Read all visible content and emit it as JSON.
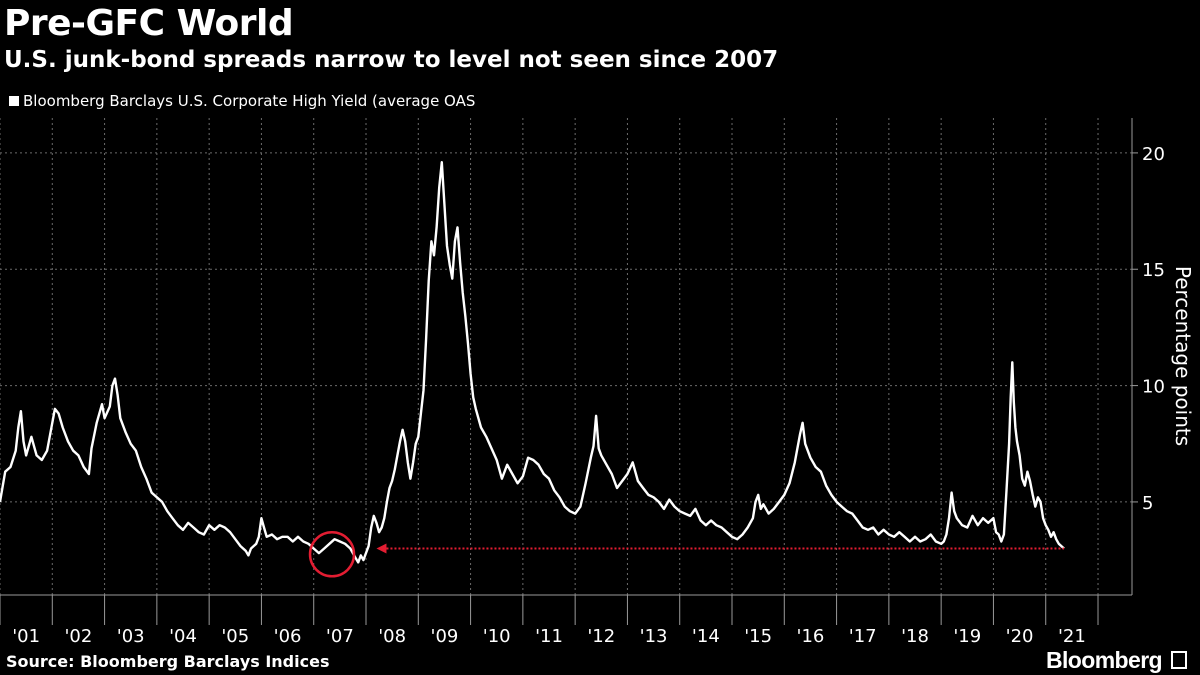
{
  "header": {
    "title": "Pre-GFC World",
    "subtitle": "U.S. junk-bond spreads narrow to level not seen since 2007"
  },
  "footer": {
    "source": "Source: Bloomberg Barclays Indices",
    "brand": "Bloomberg"
  },
  "colors": {
    "background": "#000000",
    "series": "#ffffff",
    "highlight": "#e31d32",
    "grid": "#6b6b6b"
  },
  "chart_data": {
    "type": "line",
    "title": "Pre-GFC World",
    "subtitle": "U.S. junk-bond spreads narrow to level not seen since 2007",
    "ylabel": "Percentage points",
    "ylim": [
      1,
      21.5
    ],
    "yticks": [
      5,
      10,
      15,
      20
    ],
    "xlim": [
      2000.0,
      2021.65
    ],
    "grid": true,
    "legend_position": "top-left",
    "x_tick_labels": [
      "'01",
      "'02",
      "'03",
      "'04",
      "'05",
      "'06",
      "'07",
      "'08",
      "'09",
      "'10",
      "'11",
      "'12",
      "'13",
      "'14",
      "'15",
      "'16",
      "'17",
      "'18",
      "'19",
      "'20",
      "'21"
    ],
    "series": [
      {
        "name": "Bloomberg Barclays U.S. Corporate High Yield (average OAS",
        "color": "#ffffff",
        "points": [
          [
            2000.0,
            5.0
          ],
          [
            2000.1,
            6.3
          ],
          [
            2000.2,
            6.5
          ],
          [
            2000.3,
            7.2
          ],
          [
            2000.35,
            8.2
          ],
          [
            2000.4,
            8.9
          ],
          [
            2000.45,
            7.6
          ],
          [
            2000.5,
            7.0
          ],
          [
            2000.6,
            7.8
          ],
          [
            2000.7,
            7.0
          ],
          [
            2000.8,
            6.8
          ],
          [
            2000.9,
            7.2
          ],
          [
            2001.0,
            8.4
          ],
          [
            2001.05,
            9.0
          ],
          [
            2001.12,
            8.8
          ],
          [
            2001.2,
            8.2
          ],
          [
            2001.3,
            7.6
          ],
          [
            2001.4,
            7.2
          ],
          [
            2001.5,
            7.0
          ],
          [
            2001.6,
            6.5
          ],
          [
            2001.7,
            6.2
          ],
          [
            2001.75,
            7.3
          ],
          [
            2001.85,
            8.4
          ],
          [
            2001.95,
            9.2
          ],
          [
            2002.0,
            8.6
          ],
          [
            2002.1,
            9.1
          ],
          [
            2002.15,
            10.0
          ],
          [
            2002.2,
            10.3
          ],
          [
            2002.25,
            9.6
          ],
          [
            2002.3,
            8.6
          ],
          [
            2002.4,
            8.0
          ],
          [
            2002.5,
            7.5
          ],
          [
            2002.6,
            7.2
          ],
          [
            2002.7,
            6.5
          ],
          [
            2002.8,
            6.0
          ],
          [
            2002.9,
            5.4
          ],
          [
            2003.0,
            5.2
          ],
          [
            2003.1,
            5.0
          ],
          [
            2003.2,
            4.6
          ],
          [
            2003.3,
            4.3
          ],
          [
            2003.4,
            4.0
          ],
          [
            2003.5,
            3.8
          ],
          [
            2003.6,
            4.1
          ],
          [
            2003.7,
            3.9
          ],
          [
            2003.8,
            3.7
          ],
          [
            2003.9,
            3.6
          ],
          [
            2004.0,
            4.0
          ],
          [
            2004.1,
            3.8
          ],
          [
            2004.2,
            4.0
          ],
          [
            2004.3,
            3.9
          ],
          [
            2004.4,
            3.7
          ],
          [
            2004.5,
            3.4
          ],
          [
            2004.6,
            3.1
          ],
          [
            2004.7,
            2.9
          ],
          [
            2004.75,
            2.7
          ],
          [
            2004.8,
            3.0
          ],
          [
            2004.9,
            3.2
          ],
          [
            2004.95,
            3.5
          ],
          [
            2005.0,
            4.3
          ],
          [
            2005.05,
            3.9
          ],
          [
            2005.1,
            3.5
          ],
          [
            2005.2,
            3.6
          ],
          [
            2005.3,
            3.4
          ],
          [
            2005.4,
            3.5
          ],
          [
            2005.5,
            3.5
          ],
          [
            2005.6,
            3.3
          ],
          [
            2005.7,
            3.5
          ],
          [
            2005.8,
            3.3
          ],
          [
            2005.9,
            3.2
          ],
          [
            2006.0,
            3.0
          ],
          [
            2006.1,
            2.8
          ],
          [
            2006.2,
            3.0
          ],
          [
            2006.3,
            3.2
          ],
          [
            2006.4,
            3.4
          ],
          [
            2006.5,
            3.3
          ],
          [
            2006.6,
            3.2
          ],
          [
            2006.7,
            3.0
          ],
          [
            2006.75,
            2.8
          ],
          [
            2006.8,
            2.6
          ],
          [
            2006.85,
            2.4
          ],
          [
            2006.9,
            2.7
          ],
          [
            2006.95,
            2.5
          ],
          [
            2007.0,
            2.8
          ],
          [
            2007.05,
            3.1
          ],
          [
            2007.1,
            3.9
          ],
          [
            2007.15,
            4.4
          ],
          [
            2007.2,
            4.1
          ],
          [
            2007.25,
            3.7
          ],
          [
            2007.3,
            3.9
          ],
          [
            2007.35,
            4.3
          ],
          [
            2007.4,
            5.0
          ],
          [
            2007.45,
            5.6
          ],
          [
            2007.5,
            5.9
          ],
          [
            2007.55,
            6.4
          ],
          [
            2007.6,
            7.0
          ],
          [
            2007.65,
            7.6
          ],
          [
            2007.7,
            8.1
          ],
          [
            2007.75,
            7.6
          ],
          [
            2007.8,
            6.7
          ],
          [
            2007.85,
            6.0
          ],
          [
            2007.9,
            6.7
          ],
          [
            2007.95,
            7.5
          ],
          [
            2008.0,
            7.8
          ],
          [
            2008.05,
            8.8
          ],
          [
            2008.1,
            9.8
          ],
          [
            2008.15,
            12.0
          ],
          [
            2008.2,
            14.5
          ],
          [
            2008.25,
            16.2
          ],
          [
            2008.3,
            15.6
          ],
          [
            2008.35,
            16.8
          ],
          [
            2008.4,
            18.5
          ],
          [
            2008.45,
            19.6
          ],
          [
            2008.5,
            17.8
          ],
          [
            2008.55,
            16.0
          ],
          [
            2008.6,
            15.2
          ],
          [
            2008.65,
            14.6
          ],
          [
            2008.7,
            16.2
          ],
          [
            2008.75,
            16.8
          ],
          [
            2008.8,
            15.3
          ],
          [
            2008.85,
            14.0
          ],
          [
            2008.9,
            13.0
          ],
          [
            2008.95,
            11.8
          ],
          [
            2009.0,
            10.5
          ],
          [
            2009.05,
            9.5
          ],
          [
            2009.1,
            9.0
          ],
          [
            2009.2,
            8.2
          ],
          [
            2009.3,
            7.8
          ],
          [
            2009.4,
            7.3
          ],
          [
            2009.5,
            6.8
          ],
          [
            2009.6,
            6.0
          ],
          [
            2009.7,
            6.6
          ],
          [
            2009.8,
            6.2
          ],
          [
            2009.9,
            5.8
          ],
          [
            2010.0,
            6.1
          ],
          [
            2010.1,
            6.9
          ],
          [
            2010.2,
            6.8
          ],
          [
            2010.3,
            6.6
          ],
          [
            2010.4,
            6.2
          ],
          [
            2010.5,
            6.0
          ],
          [
            2010.6,
            5.5
          ],
          [
            2010.7,
            5.2
          ],
          [
            2010.8,
            4.8
          ],
          [
            2010.9,
            4.6
          ],
          [
            2011.0,
            4.5
          ],
          [
            2011.1,
            4.8
          ],
          [
            2011.2,
            5.8
          ],
          [
            2011.3,
            6.9
          ],
          [
            2011.35,
            7.4
          ],
          [
            2011.4,
            8.7
          ],
          [
            2011.45,
            7.3
          ],
          [
            2011.5,
            7.0
          ],
          [
            2011.6,
            6.6
          ],
          [
            2011.7,
            6.2
          ],
          [
            2011.8,
            5.6
          ],
          [
            2011.9,
            5.9
          ],
          [
            2012.0,
            6.2
          ],
          [
            2012.1,
            6.7
          ],
          [
            2012.15,
            6.3
          ],
          [
            2012.2,
            5.9
          ],
          [
            2012.3,
            5.6
          ],
          [
            2012.4,
            5.3
          ],
          [
            2012.5,
            5.2
          ],
          [
            2012.6,
            5.0
          ],
          [
            2012.7,
            4.7
          ],
          [
            2012.8,
            5.1
          ],
          [
            2012.9,
            4.8
          ],
          [
            2013.0,
            4.6
          ],
          [
            2013.1,
            4.5
          ],
          [
            2013.2,
            4.4
          ],
          [
            2013.3,
            4.7
          ],
          [
            2013.4,
            4.2
          ],
          [
            2013.5,
            4.0
          ],
          [
            2013.6,
            4.2
          ],
          [
            2013.7,
            4.0
          ],
          [
            2013.8,
            3.9
          ],
          [
            2013.9,
            3.7
          ],
          [
            2014.0,
            3.5
          ],
          [
            2014.1,
            3.4
          ],
          [
            2014.2,
            3.6
          ],
          [
            2014.3,
            3.9
          ],
          [
            2014.4,
            4.3
          ],
          [
            2014.45,
            5.0
          ],
          [
            2014.5,
            5.3
          ],
          [
            2014.55,
            4.7
          ],
          [
            2014.6,
            4.9
          ],
          [
            2014.7,
            4.5
          ],
          [
            2014.8,
            4.7
          ],
          [
            2014.9,
            5.0
          ],
          [
            2015.0,
            5.3
          ],
          [
            2015.1,
            5.8
          ],
          [
            2015.2,
            6.7
          ],
          [
            2015.25,
            7.3
          ],
          [
            2015.3,
            7.9
          ],
          [
            2015.35,
            8.4
          ],
          [
            2015.4,
            7.5
          ],
          [
            2015.5,
            6.9
          ],
          [
            2015.6,
            6.5
          ],
          [
            2015.7,
            6.3
          ],
          [
            2015.8,
            5.7
          ],
          [
            2015.9,
            5.3
          ],
          [
            2016.0,
            5.0
          ],
          [
            2016.1,
            4.8
          ],
          [
            2016.2,
            4.6
          ],
          [
            2016.3,
            4.5
          ],
          [
            2016.4,
            4.2
          ],
          [
            2016.5,
            3.9
          ],
          [
            2016.6,
            3.8
          ],
          [
            2016.7,
            3.9
          ],
          [
            2016.8,
            3.6
          ],
          [
            2016.9,
            3.8
          ],
          [
            2017.0,
            3.6
          ],
          [
            2017.1,
            3.5
          ],
          [
            2017.2,
            3.7
          ],
          [
            2017.3,
            3.5
          ],
          [
            2017.4,
            3.3
          ],
          [
            2017.5,
            3.5
          ],
          [
            2017.6,
            3.3
          ],
          [
            2017.7,
            3.4
          ],
          [
            2017.8,
            3.6
          ],
          [
            2017.9,
            3.3
          ],
          [
            2018.0,
            3.2
          ],
          [
            2018.05,
            3.3
          ],
          [
            2018.1,
            3.6
          ],
          [
            2018.15,
            4.3
          ],
          [
            2018.2,
            5.4
          ],
          [
            2018.25,
            4.6
          ],
          [
            2018.3,
            4.3
          ],
          [
            2018.4,
            4.0
          ],
          [
            2018.5,
            3.9
          ],
          [
            2018.6,
            4.4
          ],
          [
            2018.7,
            4.0
          ],
          [
            2018.8,
            4.3
          ],
          [
            2018.9,
            4.1
          ],
          [
            2019.0,
            4.3
          ],
          [
            2019.05,
            3.7
          ],
          [
            2019.1,
            3.6
          ],
          [
            2019.15,
            3.3
          ],
          [
            2019.2,
            3.6
          ],
          [
            2019.25,
            5.5
          ],
          [
            2019.3,
            7.5
          ],
          [
            2019.33,
            9.5
          ],
          [
            2019.36,
            11.0
          ],
          [
            2019.39,
            9.3
          ],
          [
            2019.42,
            8.2
          ],
          [
            2019.45,
            7.6
          ],
          [
            2019.5,
            7.0
          ],
          [
            2019.55,
            6.0
          ],
          [
            2019.6,
            5.7
          ],
          [
            2019.65,
            6.3
          ],
          [
            2019.7,
            5.9
          ],
          [
            2019.75,
            5.3
          ],
          [
            2019.8,
            4.8
          ],
          [
            2019.85,
            5.2
          ],
          [
            2019.9,
            5.0
          ],
          [
            2019.95,
            4.3
          ],
          [
            2020.0,
            4.0
          ],
          [
            2020.05,
            3.8
          ],
          [
            2020.1,
            3.5
          ],
          [
            2020.15,
            3.7
          ],
          [
            2020.2,
            3.4
          ],
          [
            2020.25,
            3.2
          ],
          [
            2020.3,
            3.1
          ],
          [
            2020.35,
            3.0
          ]
        ]
      }
    ],
    "annotations": {
      "reference_line_value": 3.0,
      "circle_x": 2006.35,
      "circle_y": 2.75
    }
  }
}
